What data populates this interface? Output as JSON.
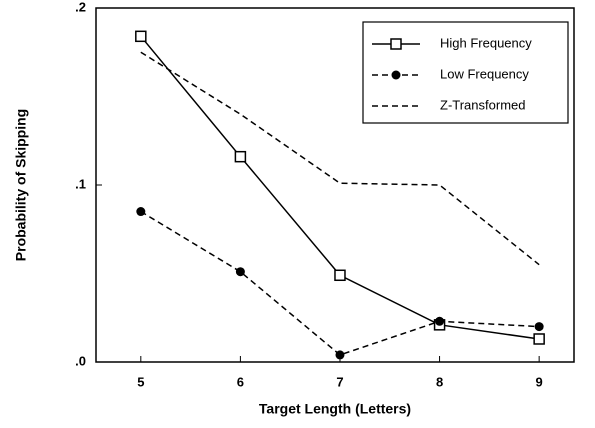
{
  "chart_data": {
    "type": "line",
    "xlabel": "Target Length (Letters)",
    "ylabel": "Probability of Skipping",
    "x": [
      5,
      6,
      7,
      8,
      9
    ],
    "xlim": [
      4.55,
      9.35
    ],
    "xticks": [
      5,
      6,
      7,
      8,
      9
    ],
    "ylim": [
      0,
      0.2
    ],
    "yticks": [
      {
        "value": 0,
        "label": ".0"
      },
      {
        "value": 0.1,
        "label": ".1"
      },
      {
        "value": 0.2,
        "label": ".2"
      }
    ],
    "legend": "upper right",
    "series": [
      {
        "name": "High Frequency",
        "color": "#000000",
        "dash": "none",
        "marker": "square",
        "values": [
          0.184,
          0.116,
          0.049,
          0.021,
          0.013
        ]
      },
      {
        "name": "Low Frequency",
        "color": "#000000",
        "dash": "6,4",
        "marker": "circle",
        "values": [
          0.085,
          0.051,
          0.004,
          0.023,
          0.02
        ]
      },
      {
        "name": "Z-Transformed",
        "color": "#000000",
        "dash": "6,4",
        "marker": "none",
        "values": [
          0.175,
          0.14,
          0.101,
          0.1,
          0.055
        ]
      }
    ]
  }
}
